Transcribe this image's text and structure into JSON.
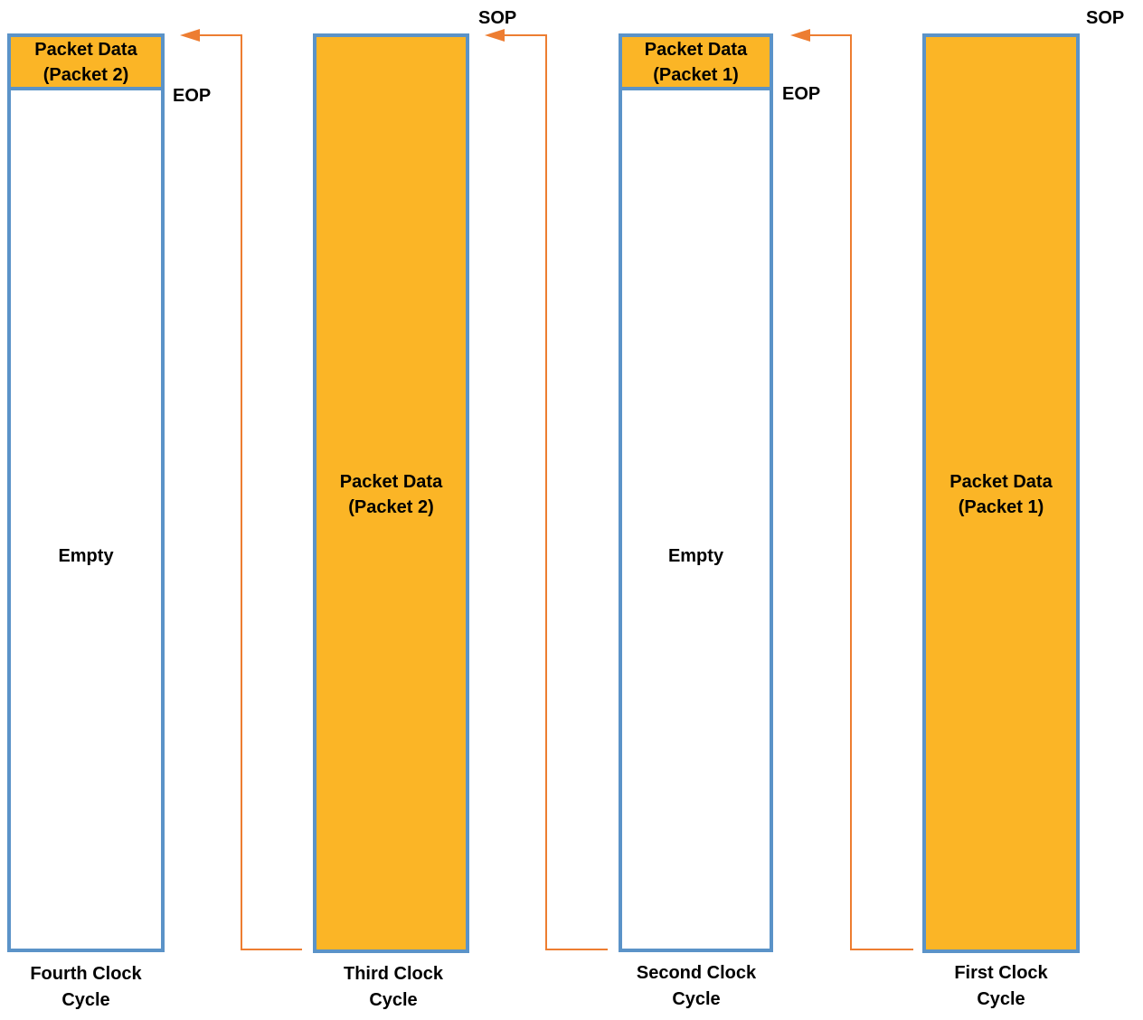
{
  "columns": [
    {
      "top_line1": "Packet Data",
      "top_line2": "(Packet 2)",
      "body": "Empty",
      "caption_line1": "Fourth Clock",
      "caption_line2": "Cycle",
      "end_marker": "EOP"
    },
    {
      "body_line1": "Packet Data",
      "body_line2": "(Packet 2)",
      "caption_line1": "Third Clock",
      "caption_line2": "Cycle",
      "start_marker": "SOP"
    },
    {
      "top_line1": "Packet Data",
      "top_line2": "(Packet 1)",
      "body": "Empty",
      "caption_line1": "Second Clock",
      "caption_line2": "Cycle",
      "end_marker": "EOP"
    },
    {
      "body_line1": "Packet Data",
      "body_line2": "(Packet 1)",
      "caption_line1": "First Clock",
      "caption_line2": "Cycle",
      "start_marker": "SOP"
    }
  ],
  "colors": {
    "packet_fill": "#fbb526",
    "column_border": "#5b93c8",
    "arrow": "#ed7d31"
  }
}
